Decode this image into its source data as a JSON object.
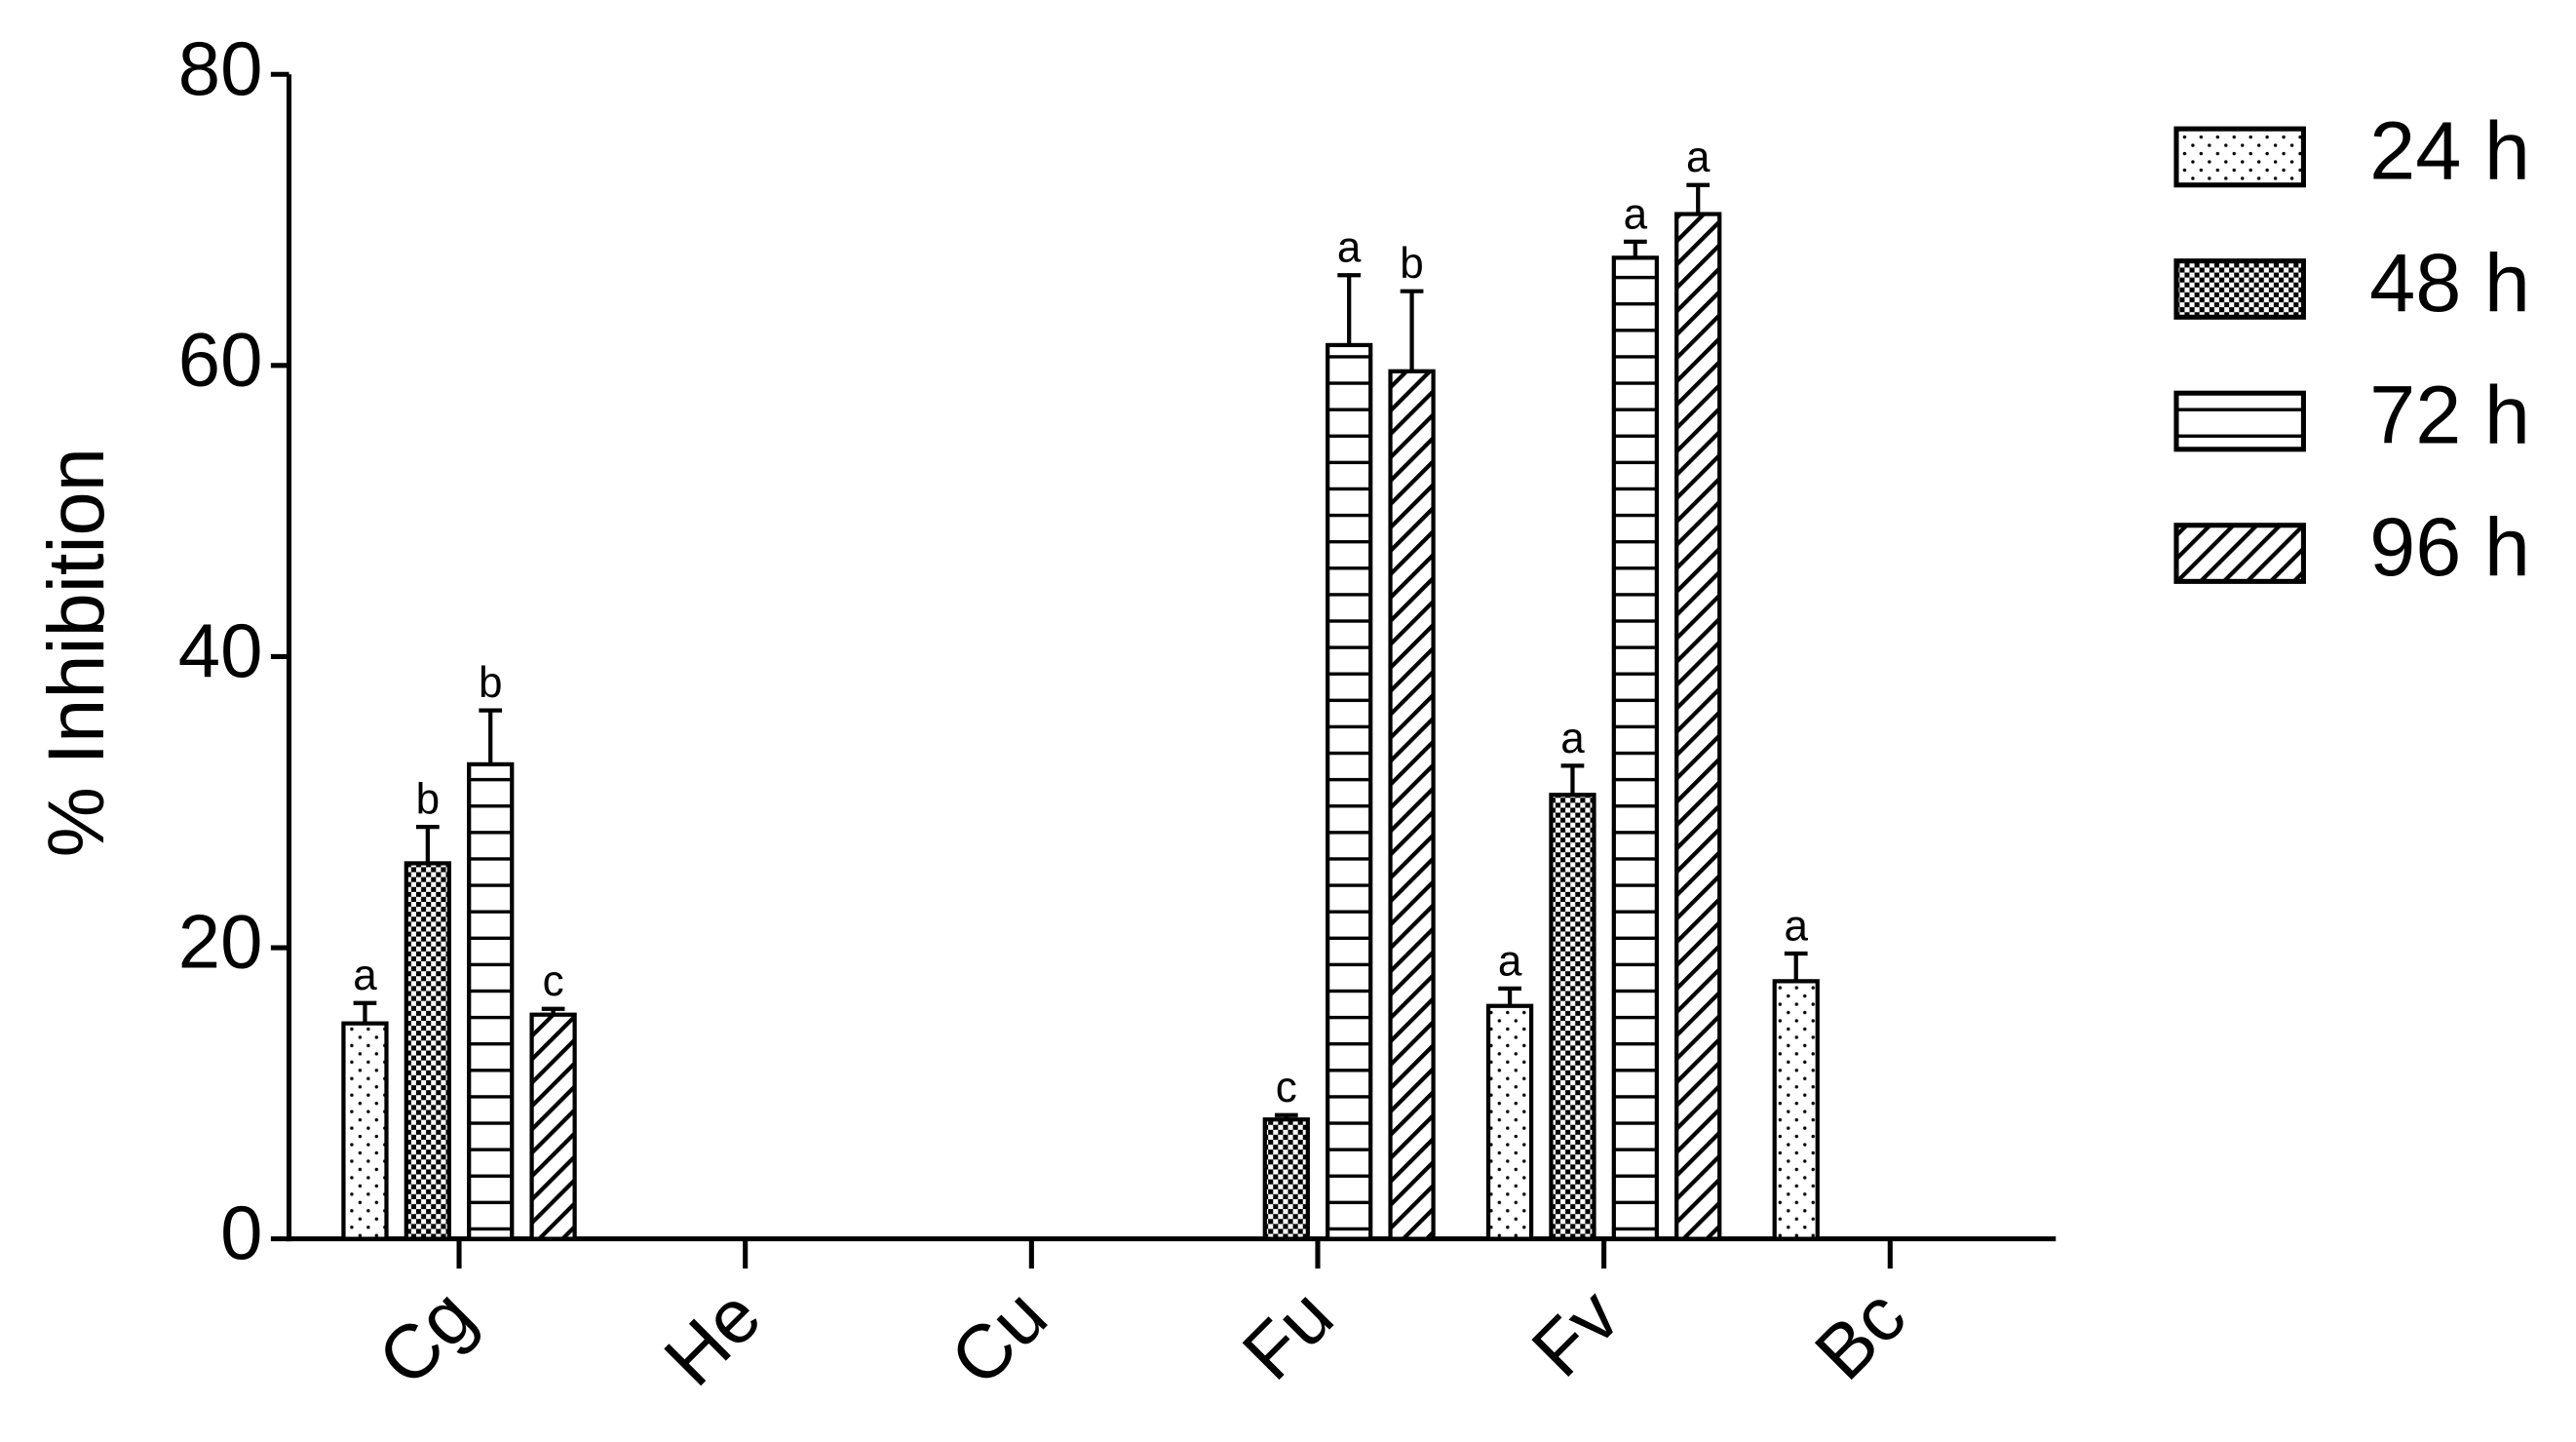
{
  "chart_data": {
    "type": "bar",
    "y_label": "% Inhibition",
    "categories": [
      "Cg",
      "He",
      "Cu",
      "Fu",
      "Fv",
      "Bc"
    ],
    "ylim": [
      0,
      80
    ],
    "yticks": [
      0,
      20,
      40,
      60,
      80
    ],
    "legend_position": "right",
    "series": [
      {
        "name": "24 h",
        "pattern": "dots",
        "color": "#000000",
        "values": [
          14.8,
          null,
          null,
          null,
          16.0,
          17.7
        ],
        "errors": [
          1.4,
          null,
          null,
          null,
          1.2,
          1.9
        ],
        "labels": [
          "a",
          null,
          null,
          null,
          "a",
          "a"
        ]
      },
      {
        "name": "48 h",
        "pattern": "checker",
        "color": "#000000",
        "values": [
          25.8,
          null,
          null,
          8.2,
          30.5,
          null
        ],
        "errors": [
          2.5,
          null,
          null,
          0.3,
          2.0,
          null
        ],
        "labels": [
          "b",
          null,
          null,
          "c",
          "a",
          null
        ]
      },
      {
        "name": "72 h",
        "pattern": "hlines",
        "color": "#000000",
        "values": [
          32.6,
          null,
          null,
          61.4,
          67.4,
          null
        ],
        "errors": [
          3.7,
          null,
          null,
          4.8,
          1.1,
          null
        ],
        "labels": [
          "b",
          null,
          null,
          "a",
          "a",
          null
        ]
      },
      {
        "name": "96 h",
        "pattern": "diagonal",
        "color": "#000000",
        "values": [
          15.4,
          null,
          null,
          59.6,
          70.4,
          null
        ],
        "errors": [
          0.4,
          null,
          null,
          5.5,
          2.0,
          null
        ],
        "labels": [
          "c",
          null,
          null,
          "b",
          "a",
          null
        ]
      }
    ]
  }
}
